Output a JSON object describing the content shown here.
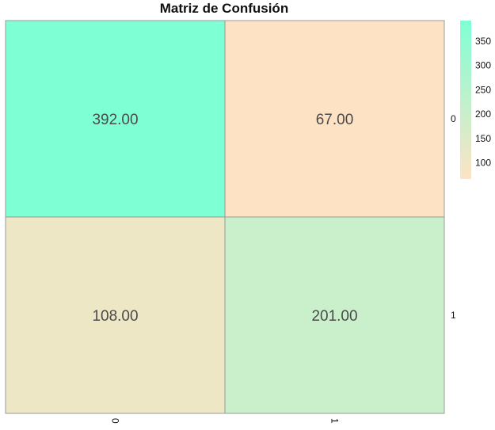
{
  "chart_data": {
    "type": "heatmap",
    "title": "Matriz de Confusión",
    "rows": [
      "0",
      "1"
    ],
    "cols": [
      "0",
      "1"
    ],
    "values": [
      [
        392,
        67
      ],
      [
        108,
        201
      ]
    ],
    "cell_labels": [
      [
        "392.00",
        "67.00"
      ],
      [
        "108.00",
        "201.00"
      ]
    ],
    "colormap": {
      "low": "#fde3c4",
      "high": "#7fffd4"
    },
    "colorbar": {
      "min": 67,
      "max": 392,
      "ticks": [
        100,
        150,
        200,
        250,
        300,
        350
      ]
    },
    "row_axis_side": "right",
    "col_tick_rotation": "90",
    "grid": false
  }
}
